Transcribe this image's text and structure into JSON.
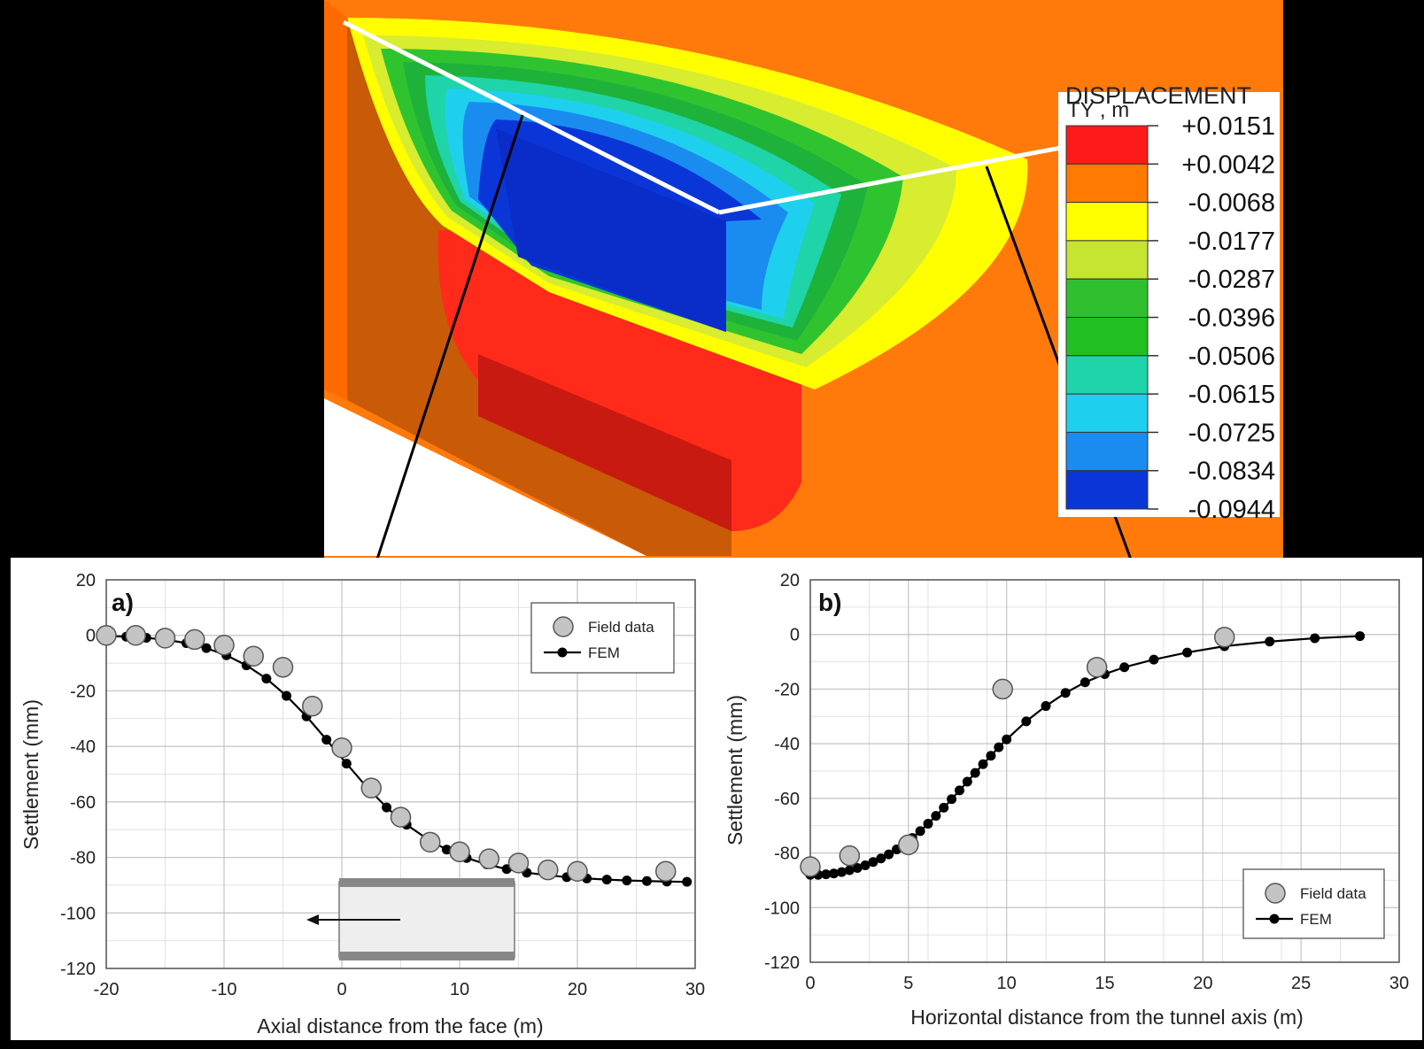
{
  "contour": {
    "legend_title_line1": "DISPLACEMENT",
    "legend_title_line2": "TY , m",
    "levels": [
      "+0.0151",
      "+0.0042",
      "-0.0068",
      "-0.0177",
      "-0.0287",
      "-0.0396",
      "-0.0506",
      "-0.0615",
      "-0.0725",
      "-0.0834",
      "-0.0944"
    ],
    "band_colors": [
      "#ff1a1a",
      "#ff7a00",
      "#ffff00",
      "#c6e432",
      "#2fbf2f",
      "#22bf22",
      "#1fd4a8",
      "#1fd0ee",
      "#1a8cf0",
      "#0a36d8"
    ]
  },
  "chart_data": [
    {
      "type": "scatter",
      "panel_label": "a)",
      "xlabel": "Axial distance from the face (m)",
      "ylabel": "Settlement (mm)",
      "xlim": [
        -20,
        30
      ],
      "ylim": [
        -120,
        20
      ],
      "x_ticks": [
        -20,
        -10,
        0,
        10,
        20,
        30
      ],
      "y_ticks": [
        20,
        0,
        -20,
        -40,
        -60,
        -80,
        -100,
        -120
      ],
      "grid": true,
      "legend_position": "top-right",
      "series": [
        {
          "name": "Field data",
          "style": "markers",
          "x": [
            -20,
            -17.5,
            -15,
            -12.5,
            -10,
            -7.5,
            -5,
            -2.5,
            0,
            2.5,
            5,
            7.5,
            10,
            12.5,
            15,
            17.5,
            20,
            27.5
          ],
          "y": [
            0,
            0,
            -1,
            -1.5,
            -3.5,
            -7.5,
            -11.5,
            -25.5,
            -40.5,
            -55,
            -65.5,
            -74.5,
            -78,
            -80.5,
            -82,
            -84.5,
            -85,
            -85
          ]
        },
        {
          "name": "FEM",
          "style": "line+markers",
          "x": [
            -20,
            -18.3,
            -16.6,
            -14.9,
            -13.2,
            -11.5,
            -9.8,
            -8.1,
            -6.4,
            -4.7,
            -3,
            -1.3,
            0.4,
            2.1,
            3.8,
            5.5,
            7.2,
            8.9,
            10.6,
            12.3,
            14,
            15.7,
            17.4,
            19.1,
            20.8,
            22.5,
            24.2,
            25.9,
            27.6,
            29.3
          ],
          "y": [
            -0.2,
            -0.5,
            -0.9,
            -1.6,
            -2.8,
            -4.6,
            -7.2,
            -10.8,
            -15.6,
            -21.8,
            -29.2,
            -37.6,
            -46.2,
            -54.6,
            -62,
            -68.2,
            -73.2,
            -77.2,
            -80.2,
            -82.5,
            -84.2,
            -85.5,
            -86.4,
            -87.1,
            -87.6,
            -88,
            -88.3,
            -88.5,
            -88.7,
            -88.8
          ]
        }
      ]
    },
    {
      "type": "scatter",
      "panel_label": "b)",
      "xlabel": "Horizontal distance from the tunnel axis (m)",
      "ylabel": "Settlement (mm)",
      "xlim": [
        0,
        30
      ],
      "ylim": [
        -120,
        20
      ],
      "x_ticks": [
        0,
        5,
        10,
        15,
        20,
        25,
        30
      ],
      "y_ticks": [
        20,
        0,
        -20,
        -40,
        -60,
        -80,
        -100,
        -120
      ],
      "grid": true,
      "legend_position": "bottom-right",
      "series": [
        {
          "name": "Field data",
          "style": "markers",
          "x": [
            0,
            2,
            5,
            9.8,
            14.6,
            21.1
          ],
          "y": [
            -85,
            -81,
            -77,
            -20,
            -12,
            -1
          ]
        },
        {
          "name": "FEM",
          "style": "line+markers",
          "x": [
            0,
            0.4,
            0.8,
            1.2,
            1.6,
            2,
            2.4,
            2.8,
            3.2,
            3.6,
            4,
            4.4,
            4.8,
            5.2,
            5.6,
            6,
            6.4,
            6.8,
            7.2,
            7.6,
            8,
            8.4,
            8.8,
            9.2,
            9.6,
            10,
            11,
            12,
            13,
            14,
            15,
            16,
            17.5,
            19.2,
            21.1,
            23.4,
            25.7,
            28
          ],
          "y": [
            -88,
            -88,
            -87.8,
            -87.5,
            -87,
            -86.3,
            -85.5,
            -84.5,
            -83.3,
            -82,
            -80.5,
            -78.7,
            -76.7,
            -74.5,
            -72,
            -69.3,
            -66.4,
            -63.4,
            -60.3,
            -57.1,
            -53.9,
            -50.7,
            -47.5,
            -44.4,
            -41.3,
            -38.4,
            -31.8,
            -26.2,
            -21.4,
            -17.5,
            -14.5,
            -12,
            -9.2,
            -6.6,
            -4.3,
            -2.6,
            -1.4,
            -0.6
          ]
        }
      ]
    }
  ]
}
